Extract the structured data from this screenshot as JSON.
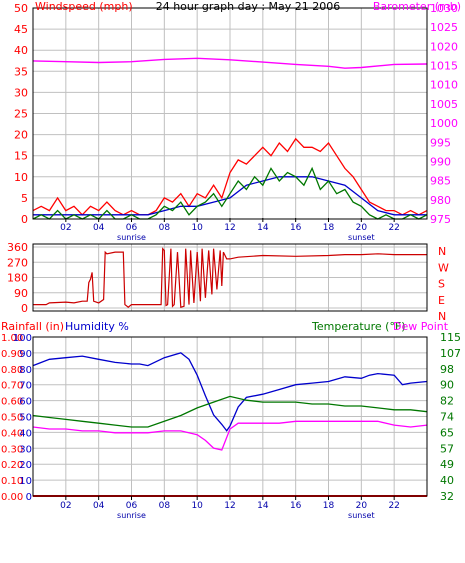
{
  "colors": {
    "background": "#ffffff",
    "axis": "#000000",
    "grid": "#c0c0c0",
    "red": "#ff0000",
    "dark_red": "#cc0000",
    "magenta": "#ff00ff",
    "blue": "#0000cc",
    "green": "#007700",
    "navy": "#0000aa"
  },
  "chart_data": [
    {
      "id": "wind-baro",
      "type": "line",
      "title": "24 hour graph day : May 21 2006",
      "left_axis_label": "Windspeed (mph)",
      "right_axis_label": "Barometer (mb)",
      "x_ticks": [
        "02",
        "04",
        "06",
        "08",
        "10",
        "12",
        "14",
        "16",
        "18",
        "20",
        "22"
      ],
      "x_annotations": {
        "sunrise": "sunrise",
        "sunset": "sunset",
        "sunrise_hour": 6,
        "sunset_hour": 20
      },
      "x_range": [
        0,
        24
      ],
      "y_left_range": [
        0,
        50
      ],
      "y_left_ticks": [
        0,
        5,
        10,
        15,
        20,
        25,
        30,
        35,
        40,
        45,
        50
      ],
      "y_right_range": [
        975,
        1030
      ],
      "y_right_ticks": [
        975,
        980,
        985,
        990,
        995,
        1000,
        1005,
        1010,
        1015,
        1020,
        1025,
        1030
      ],
      "grid": true,
      "series": [
        {
          "role": "barometer",
          "axis": "right",
          "color": "#ff00ff",
          "x": [
            0,
            2,
            4,
            6,
            8,
            10,
            12,
            14,
            16,
            18,
            19,
            20,
            22,
            24
          ],
          "y": [
            1016.2,
            1016.0,
            1015.8,
            1016.0,
            1016.6,
            1016.9,
            1016.5,
            1015.9,
            1015.3,
            1014.8,
            1014.3,
            1014.5,
            1015.3,
            1015.4
          ]
        },
        {
          "role": "wind-gust",
          "axis": "left",
          "color": "#ff0000",
          "x": [
            0,
            0.5,
            1,
            1.5,
            2,
            2.5,
            3,
            3.5,
            4,
            4.5,
            5,
            5.5,
            6,
            6.5,
            7,
            7.5,
            8,
            8.5,
            9,
            9.5,
            10,
            10.5,
            11,
            11.5,
            12,
            12.5,
            13,
            13.5,
            14,
            14.5,
            15,
            15.5,
            16,
            16.5,
            17,
            17.5,
            18,
            18.5,
            19,
            19.5,
            20,
            20.5,
            21,
            21.5,
            22,
            22.5,
            23,
            23.5,
            24
          ],
          "y": [
            2,
            3,
            2,
            5,
            2,
            3,
            1,
            3,
            2,
            4,
            2,
            1,
            2,
            1,
            1,
            2,
            5,
            4,
            6,
            3,
            6,
            5,
            8,
            5,
            11,
            14,
            13,
            15,
            17,
            15,
            18,
            16,
            19,
            17,
            17,
            16,
            18,
            15,
            12,
            10,
            7,
            4,
            3,
            2,
            2,
            1,
            2,
            1,
            2
          ]
        },
        {
          "role": "wind-average",
          "axis": "left",
          "color": "#0000cc",
          "x": [
            0,
            1,
            2,
            3,
            4,
            5,
            6,
            7,
            8,
            9,
            10,
            11,
            12,
            13,
            14,
            15,
            16,
            17,
            18,
            19,
            20,
            21,
            22,
            23,
            24
          ],
          "y": [
            1,
            1,
            1,
            1,
            1,
            1,
            1,
            1,
            2,
            3,
            3,
            4,
            5,
            8,
            9,
            10,
            10,
            10,
            9,
            8,
            5,
            2,
            1,
            1,
            1
          ]
        },
        {
          "role": "wind-speed",
          "axis": "left",
          "color": "#007700",
          "x": [
            0,
            0.5,
            1,
            1.5,
            2,
            2.5,
            3,
            3.5,
            4,
            4.5,
            5,
            5.5,
            6,
            6.5,
            7,
            7.5,
            8,
            8.5,
            9,
            9.5,
            10,
            10.5,
            11,
            11.5,
            12,
            12.5,
            13,
            13.5,
            14,
            14.5,
            15,
            15.5,
            16,
            16.5,
            17,
            17.5,
            18,
            18.5,
            19,
            19.5,
            20,
            20.5,
            21,
            21.5,
            22,
            22.5,
            23,
            23.5,
            24
          ],
          "y": [
            0,
            1,
            0,
            2,
            0,
            1,
            0,
            1,
            0,
            2,
            0,
            0,
            1,
            0,
            0,
            1,
            3,
            2,
            4,
            1,
            3,
            4,
            6,
            3,
            6,
            9,
            7,
            10,
            8,
            12,
            9,
            11,
            10,
            8,
            12,
            7,
            9,
            6,
            7,
            4,
            3,
            1,
            0,
            1,
            0,
            0,
            1,
            0,
            1
          ]
        }
      ]
    },
    {
      "id": "wind-direction",
      "type": "line",
      "left_ticks": [
        0,
        90,
        180,
        270,
        360
      ],
      "right_labels": [
        "N",
        "W",
        "S",
        "E",
        "N"
      ],
      "x_range": [
        0,
        24
      ],
      "y_range": [
        0,
        360
      ],
      "grid": true,
      "series": [
        {
          "role": "direction",
          "color": "#cc0000",
          "x": [
            0,
            0.8,
            1.0,
            2.0,
            2.5,
            3.0,
            3.3,
            3.4,
            3.5,
            3.6,
            3.7,
            4.0,
            4.3,
            4.4,
            4.5,
            5.0,
            5.5,
            5.6,
            5.8,
            6.0,
            7.0,
            7.7,
            7.8,
            7.9,
            8.0,
            8.1,
            8.2,
            8.4,
            8.5,
            8.6,
            8.8,
            9.0,
            9.2,
            9.3,
            9.5,
            9.6,
            9.8,
            10.0,
            10.2,
            10.3,
            10.5,
            10.7,
            10.9,
            11.0,
            11.2,
            11.4,
            11.5,
            11.6,
            11.8,
            12.0,
            12.5,
            14,
            16,
            18,
            19,
            20,
            21,
            22,
            24
          ],
          "y": [
            20,
            20,
            30,
            35,
            30,
            40,
            40,
            150,
            170,
            210,
            40,
            30,
            50,
            330,
            320,
            330,
            330,
            20,
            5,
            20,
            20,
            20,
            20,
            350,
            340,
            15,
            20,
            350,
            10,
            20,
            330,
            5,
            10,
            350,
            20,
            340,
            30,
            330,
            40,
            350,
            60,
            340,
            80,
            350,
            110,
            340,
            130,
            330,
            290,
            290,
            300,
            310,
            305,
            310,
            315,
            315,
            320,
            315,
            315
          ]
        }
      ]
    },
    {
      "id": "rain-humidity-temp",
      "type": "line",
      "left_labels": {
        "rainfall": "Rainfall (in)",
        "humidity": "Humidity %"
      },
      "right_labels": {
        "temperature": "Temperature (°F)",
        "dew_point": "Dew Point"
      },
      "x_ticks": [
        "02",
        "04",
        "06",
        "08",
        "10",
        "12",
        "14",
        "16",
        "18",
        "20",
        "22"
      ],
      "x_annotations": {
        "sunrise": "sunrise",
        "sunset": "sunset",
        "sunrise_hour": 6,
        "sunset_hour": 20
      },
      "x_range": [
        0,
        24
      ],
      "humidity_ticks": [
        0,
        10,
        20,
        30,
        40,
        50,
        60,
        70,
        80,
        90,
        100
      ],
      "rain_ticks": [
        "0.00",
        "0.10",
        "0.20",
        "0.30",
        "0.40",
        "0.50",
        "0.60",
        "0.70",
        "0.80",
        "0.90",
        "1.00"
      ],
      "temp_ticks": [
        32,
        40,
        49,
        57,
        65,
        74,
        82,
        90,
        98,
        107,
        115
      ],
      "y_left_range": [
        0,
        100
      ],
      "y_right_range": [
        32,
        115
      ],
      "grid": true,
      "series": [
        {
          "role": "humidity",
          "axis": "left",
          "color": "#0000cc",
          "x": [
            0,
            1,
            2,
            3,
            4,
            5,
            6,
            6.5,
            7,
            8,
            9,
            9.5,
            10,
            10.5,
            11,
            11.5,
            11.8,
            12,
            12.5,
            13,
            14,
            15,
            16,
            17,
            18,
            19,
            20,
            20.5,
            21,
            22,
            22.5,
            23,
            24
          ],
          "y": [
            82,
            86,
            87,
            88,
            86,
            84,
            83,
            83,
            82,
            87,
            90,
            86,
            76,
            63,
            51,
            45,
            41,
            44,
            56,
            62,
            64,
            67,
            70,
            71,
            72,
            75,
            74,
            76,
            77,
            76,
            70,
            71,
            72
          ]
        },
        {
          "role": "temperature",
          "axis": "right",
          "color": "#007700",
          "x": [
            0,
            1,
            2,
            3,
            4,
            5,
            6,
            7,
            8,
            9,
            10,
            11,
            12,
            13,
            14,
            15,
            16,
            17,
            18,
            19,
            20,
            21,
            22,
            23,
            24
          ],
          "y": [
            74,
            73,
            72,
            71,
            70,
            69,
            68,
            68,
            71,
            74,
            78,
            81,
            84,
            82,
            81,
            81,
            81,
            80,
            80,
            79,
            79,
            78,
            77,
            77,
            76
          ]
        },
        {
          "role": "dew-point",
          "axis": "right",
          "color": "#ff00ff",
          "x": [
            0,
            1,
            2,
            3,
            4,
            5,
            6,
            7,
            8,
            9,
            10,
            10.5,
            11,
            11.5,
            12,
            12.5,
            13,
            14,
            15,
            16,
            17,
            18,
            19,
            20,
            21,
            22,
            23,
            24
          ],
          "y": [
            68,
            67,
            67,
            66,
            66,
            65,
            65,
            65,
            66,
            66,
            64,
            61,
            57,
            56,
            67,
            70,
            70,
            70,
            70,
            71,
            71,
            71,
            71,
            71,
            71,
            69,
            68,
            69
          ]
        },
        {
          "role": "rainfall",
          "axis": "left",
          "color": "#ff0000",
          "x": [
            0,
            24
          ],
          "y": [
            0,
            0
          ]
        }
      ]
    }
  ]
}
